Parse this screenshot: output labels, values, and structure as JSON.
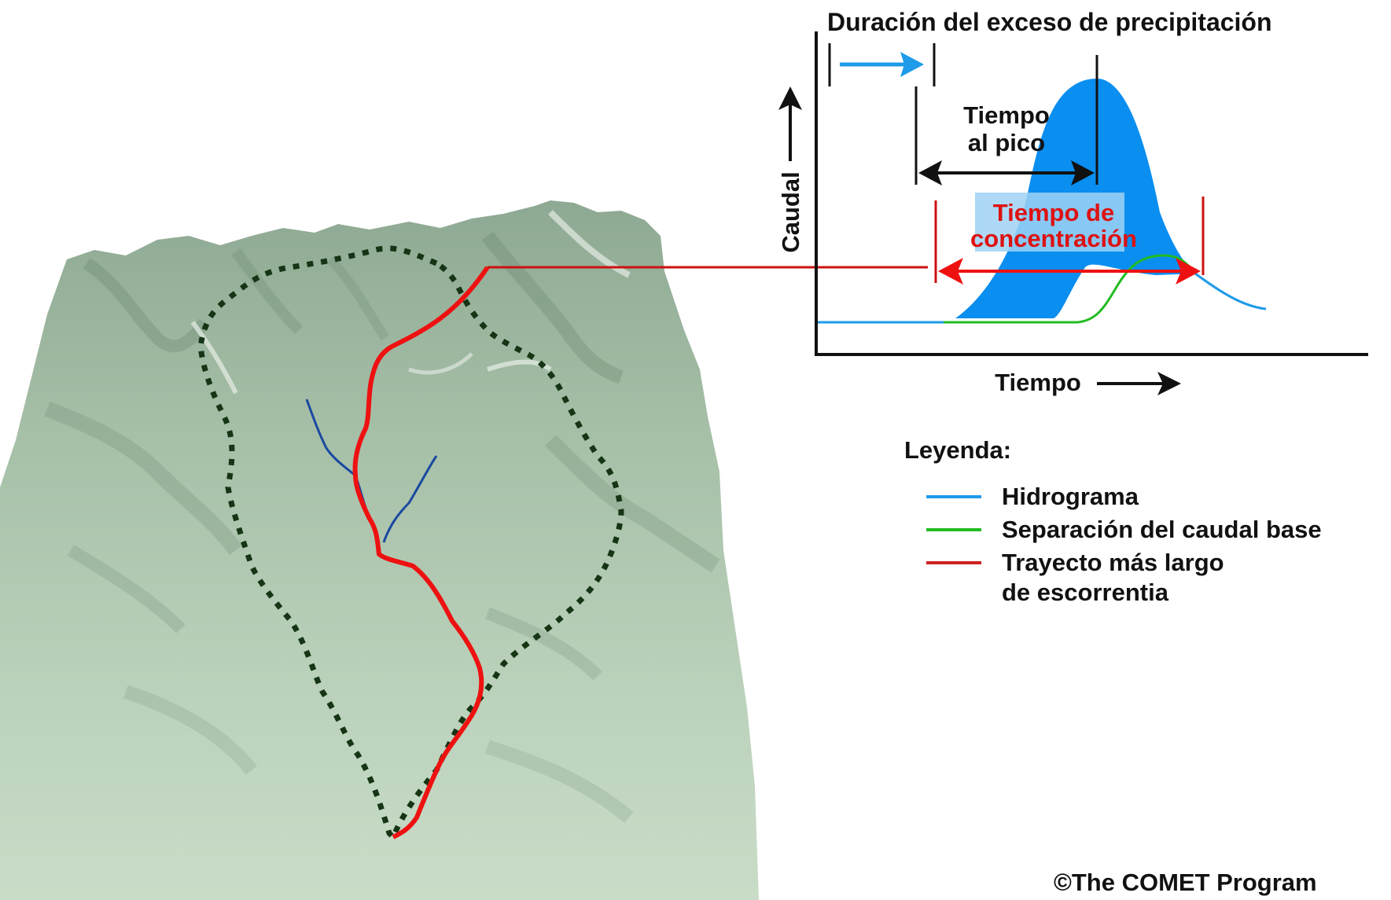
{
  "diagram": {
    "duration_label": "Duración del exceso de precipitación",
    "time_to_peak_line1": "Tiempo",
    "time_to_peak_line2": "al pico",
    "concentration_line1": "Tiempo de",
    "concentration_line2": "concentración",
    "y_axis_label": "Caudal",
    "x_axis_label": "Tiempo"
  },
  "legend": {
    "title": "Leyenda:",
    "items": [
      {
        "label": "Hidrograma",
        "color": "#1e9be9"
      },
      {
        "label": "Separación del caudal base",
        "color": "#22bb22"
      },
      {
        "label": "Trayecto más largo",
        "label2": "de escorrentia",
        "color": "#cc2222"
      }
    ]
  },
  "copyright": "©The COMET Program",
  "colors": {
    "hydrograph_fill": "#0a8ef0",
    "hydrograph_line": "#1e9be9",
    "baseflow": "#22bb22",
    "runoff_path": "#ee1111",
    "watershed_boundary": "#1a3a1a",
    "tributary": "#1a4aa0",
    "terrain": "#9fb9a2"
  }
}
